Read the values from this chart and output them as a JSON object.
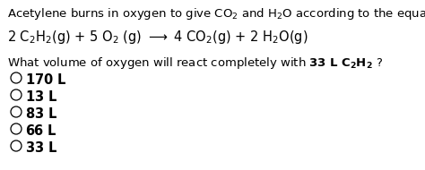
{
  "bg_color": "#ffffff",
  "text_color": "#000000",
  "font_size_title": 9.5,
  "font_size_eq": 10.5,
  "font_size_question": 9.5,
  "font_size_answers": 10.5,
  "answers": [
    "170 L",
    "13 L",
    "83 L",
    "66 L",
    "33 L"
  ]
}
